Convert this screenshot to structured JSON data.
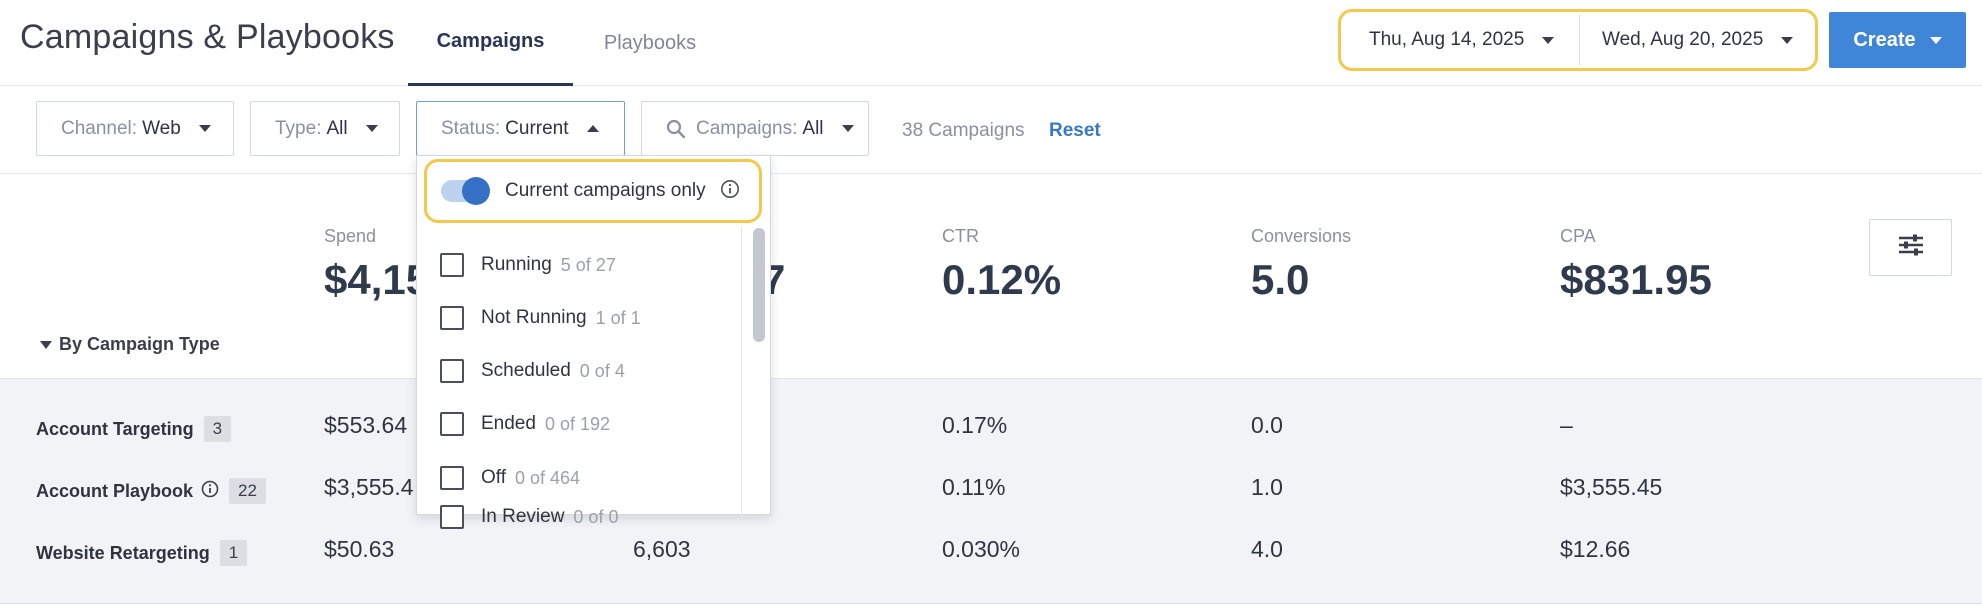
{
  "header": {
    "title": "Campaigns & Playbooks",
    "tabs": [
      {
        "label": "Campaigns",
        "active": true
      },
      {
        "label": "Playbooks",
        "active": false
      }
    ],
    "start_date": "Thu, Aug 14, 2025",
    "end_date": "Wed, Aug 20, 2025",
    "create_label": "Create"
  },
  "filters": {
    "channel": {
      "label": "Channel:",
      "value": "Web"
    },
    "type": {
      "label": "Type:",
      "value": "All"
    },
    "status": {
      "label": "Status:",
      "value": "Current"
    },
    "campaigns": {
      "label": "Campaigns:",
      "value": "All"
    },
    "count_text": "38 Campaigns",
    "reset_label": "Reset"
  },
  "stats": [
    {
      "label": "Spend",
      "value": "$4,15"
    },
    {
      "label": "",
      "value": "7"
    },
    {
      "label": "CTR",
      "value": "0.12%"
    },
    {
      "label": "Conversions",
      "value": "5.0"
    },
    {
      "label": "CPA",
      "value": "$831.95"
    }
  ],
  "by_campaign_type_label": "By Campaign Type",
  "table": {
    "rows": [
      {
        "label": "Account Targeting",
        "count": "3",
        "cells": [
          "$553.64",
          "",
          "0.17%",
          "0.0",
          "–"
        ]
      },
      {
        "label": "Account Playbook",
        "count": "22",
        "cells": [
          "$3,555.4",
          "",
          "0.11%",
          "1.0",
          "$3,555.45"
        ]
      },
      {
        "label": "Website Retargeting",
        "count": "1",
        "cells": [
          "$50.63",
          "6,603",
          "0.030%",
          "4.0",
          "$12.66"
        ]
      }
    ]
  },
  "status_dropdown": {
    "toggle_label": "Current campaigns only",
    "toggle_on": true,
    "options": [
      {
        "label": "Running",
        "count": "5 of 27"
      },
      {
        "label": "Not Running",
        "count": "1 of 1"
      },
      {
        "label": "Scheduled",
        "count": "0 of 4"
      },
      {
        "label": "Ended",
        "count": "0 of 192"
      },
      {
        "label": "Off",
        "count": "0 of 464"
      },
      {
        "label": "In Review",
        "count": "0 of 0"
      }
    ]
  },
  "colors": {
    "accent": "#3f86d8",
    "highlight": "#f2c94c",
    "tab_active": "#283556",
    "link": "#3a78c3"
  },
  "icons": [
    "chevron-down-icon",
    "chevron-up-icon",
    "search-icon",
    "sliders-icon",
    "info-icon"
  ]
}
